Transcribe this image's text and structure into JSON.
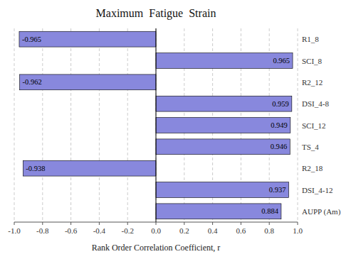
{
  "chart_data": {
    "type": "bar",
    "orientation": "horizontal",
    "title": "Maximum  Fatigue  Strain",
    "xlabel": "Rank Order Correlation Coefficient, r",
    "categories": [
      "R1_8",
      "SCI_8",
      "R2_12",
      "DSI_4-8",
      "SCI_12",
      "TS_4",
      "R2_18",
      "DSI_4-12",
      "AUPP (Am)"
    ],
    "values": [
      -0.965,
      0.965,
      -0.962,
      0.959,
      0.949,
      0.946,
      -0.938,
      0.937,
      0.884
    ],
    "color": "#8888dd",
    "xlim": [
      -1.0,
      1.0
    ],
    "xticks": [
      {
        "value": -1.0,
        "label": "-1.0"
      },
      -0.8,
      -0.6,
      -0.4,
      -0.2,
      {
        "value": 0.0,
        "label": "0.0"
      },
      0.2,
      0.4,
      0.6,
      0.8,
      {
        "value": 1.0,
        "label": "1.0"
      }
    ],
    "grid": true,
    "data_labels": true
  }
}
